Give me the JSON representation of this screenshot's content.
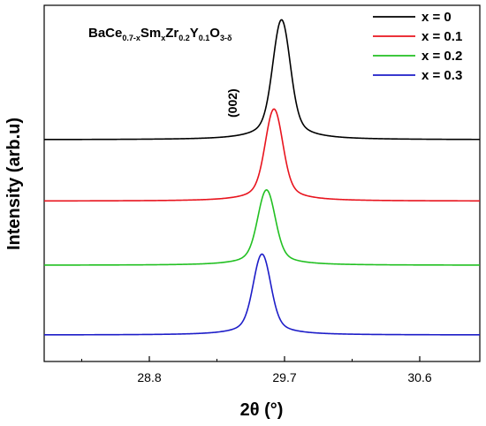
{
  "chart_data": {
    "type": "line",
    "xlabel": "2θ (°)",
    "ylabel": "Intensity (arb.u)",
    "xlim": [
      28.1,
      31.0
    ],
    "x_ticks": [
      28.8,
      29.7,
      30.6
    ],
    "y_ticks_visible": false,
    "formula": {
      "base": "BaCe",
      "parts": [
        {
          "text": "BaCe",
          "sub": "0.7-x"
        },
        {
          "text": "Sm",
          "sub": "x"
        },
        {
          "text": "Zr",
          "sub": "0.2"
        },
        {
          "text": "Y",
          "sub": "0.1"
        },
        {
          "text": "O",
          "sub": "3-δ"
        }
      ]
    },
    "peak_label": "(002)",
    "legend_position": "top-right",
    "series": [
      {
        "name": "x = 0",
        "color": "#000000",
        "baseline": 0.7,
        "peak_x": 29.68,
        "peak_height": 0.43,
        "width": 0.055
      },
      {
        "name": "x = 0.1",
        "color": "#e8141e",
        "baseline": 0.48,
        "peak_x": 29.63,
        "peak_height": 0.33,
        "width": 0.055
      },
      {
        "name": "x = 0.2",
        "color": "#22c022",
        "baseline": 0.25,
        "peak_x": 29.58,
        "peak_height": 0.27,
        "width": 0.055
      },
      {
        "name": "x = 0.3",
        "color": "#1d1dc8",
        "baseline": 0.0,
        "peak_x": 29.55,
        "peak_height": 0.29,
        "width": 0.055
      }
    ]
  }
}
